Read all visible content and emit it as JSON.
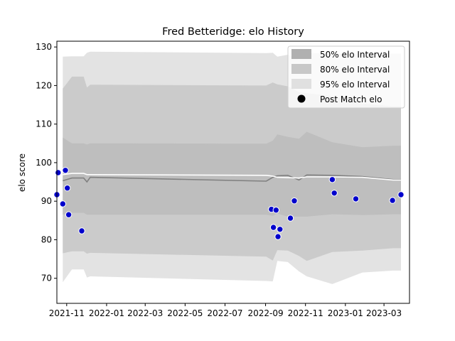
{
  "chart_data": {
    "type": "line",
    "title": "Fred Betteridge: elo History",
    "xlabel": "",
    "ylabel": "elo score",
    "xlim": [
      "2021-10-17",
      "2023-04-09"
    ],
    "ylim": [
      63.5,
      131.5
    ],
    "x_ticks": [
      "2021-11",
      "2022-01",
      "2022-03",
      "2022-05",
      "2022-07",
      "2022-09",
      "2022-11",
      "2023-01",
      "2023-03"
    ],
    "y_ticks": [
      70,
      80,
      90,
      100,
      110,
      120,
      130
    ],
    "grid": false,
    "legend_position": "top-right",
    "legend": [
      {
        "label": "50% elo Interval",
        "color": "#b0b0b0",
        "kind": "patch"
      },
      {
        "label": "80% elo Interval",
        "color": "#c8c8c8",
        "kind": "patch"
      },
      {
        "label": "95% elo Interval",
        "color": "#e0e0e0",
        "kind": "patch"
      },
      {
        "label": "Post Match elo",
        "color": "#000000",
        "kind": "marker"
      }
    ],
    "colors": {
      "band95": "#e3e3e3",
      "band80": "#cbcbcb",
      "band50": "#bebebe",
      "mean_line": "#808080",
      "median_line": "#ffffff",
      "points": "#0000cc"
    },
    "dates": [
      "2021-10-26",
      "2021-11-09",
      "2021-11-27",
      "2021-12-02",
      "2021-12-07",
      "2022-09-02",
      "2022-09-12",
      "2022-09-19",
      "2022-10-05",
      "2022-10-22",
      "2022-11-03",
      "2022-12-12",
      "2023-01-27",
      "2023-03-15",
      "2023-03-27"
    ],
    "series": [
      {
        "name": "95% elo Interval",
        "type": "band",
        "lower": [
          69.0,
          72.3,
          72.3,
          70.2,
          70.5,
          69.3,
          69.2,
          74.5,
          74.2,
          71.8,
          70.5,
          68.5,
          71.5,
          72.0,
          72.0
        ],
        "upper": [
          127.5,
          127.6,
          127.6,
          128.5,
          128.8,
          128.4,
          128.5,
          127.5,
          128.0,
          126.8,
          128.5,
          128.2,
          128.3,
          128.3,
          128.3
        ]
      },
      {
        "name": "80% elo Interval",
        "type": "band",
        "lower": [
          76.5,
          77.0,
          77.0,
          76.4,
          76.6,
          75.6,
          74.6,
          77.3,
          77.2,
          75.8,
          74.5,
          76.8,
          77.2,
          77.8,
          77.8
        ],
        "upper": [
          119.2,
          122.3,
          122.3,
          119.5,
          120.2,
          120.0,
          120.8,
          120.3,
          119.8,
          118.3,
          118.0,
          117.3,
          115.3,
          114.6,
          114.6
        ]
      },
      {
        "name": "50% elo Interval",
        "type": "band",
        "lower": [
          86.5,
          87.0,
          87.0,
          86.5,
          86.5,
          86.5,
          86.2,
          86.8,
          86.0,
          86.0,
          86.0,
          86.6,
          86.4,
          86.6,
          86.6
        ],
        "upper": [
          106.5,
          105.0,
          105.0,
          104.7,
          105.0,
          104.9,
          105.7,
          107.3,
          106.7,
          106.2,
          108.0,
          105.3,
          104.0,
          104.4,
          104.4
        ]
      },
      {
        "name": "mean",
        "type": "line",
        "values": [
          95.3,
          96.0,
          96.0,
          95.0,
          96.2,
          95.2,
          96.2,
          96.6,
          96.7,
          95.5,
          96.8,
          96.7,
          96.4,
          95.6,
          95.6
        ]
      },
      {
        "name": "median",
        "type": "line",
        "values": [
          96.9,
          97.2,
          97.2,
          96.9,
          96.9,
          96.7,
          96.5,
          96.2,
          96.1,
          96.0,
          96.3,
          96.3,
          96.2,
          95.5,
          95.5
        ]
      },
      {
        "name": "Post Match elo",
        "type": "scatter",
        "points": [
          {
            "x": "2021-10-17",
            "y": 91.7
          },
          {
            "x": "2021-10-19",
            "y": 97.4
          },
          {
            "x": "2021-10-26",
            "y": 89.3
          },
          {
            "x": "2021-10-30",
            "y": 98.0
          },
          {
            "x": "2021-11-02",
            "y": 93.4
          },
          {
            "x": "2021-11-04",
            "y": 86.5
          },
          {
            "x": "2021-11-24",
            "y": 82.3
          },
          {
            "x": "2022-09-10",
            "y": 87.9
          },
          {
            "x": "2022-09-13",
            "y": 83.2
          },
          {
            "x": "2022-09-17",
            "y": 87.7
          },
          {
            "x": "2022-09-20",
            "y": 80.8
          },
          {
            "x": "2022-09-23",
            "y": 82.7
          },
          {
            "x": "2022-10-09",
            "y": 85.6
          },
          {
            "x": "2022-10-15",
            "y": 90.1
          },
          {
            "x": "2022-12-12",
            "y": 95.6
          },
          {
            "x": "2022-12-15",
            "y": 92.1
          },
          {
            "x": "2023-01-17",
            "y": 90.6
          },
          {
            "x": "2023-03-14",
            "y": 90.2
          },
          {
            "x": "2023-03-27",
            "y": 91.7
          }
        ]
      }
    ]
  }
}
